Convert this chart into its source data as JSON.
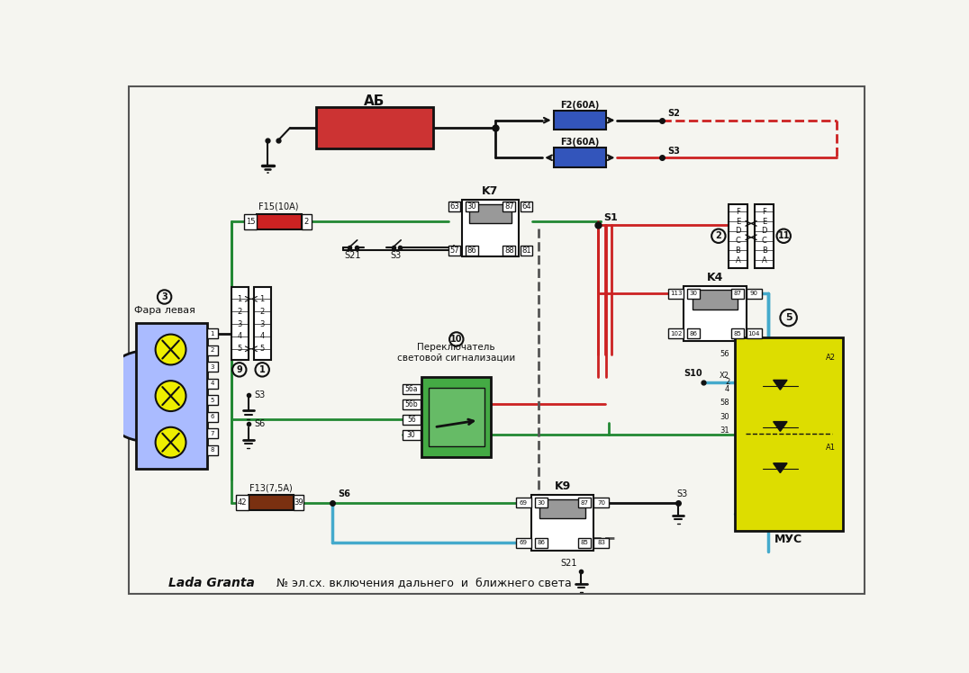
{
  "title": "Lada Granta",
  "subtitle": "№ эл.сх. включения дальнего  и  ближнего света",
  "bg": "#f5f5f0",
  "red": "#cc2222",
  "green": "#228833",
  "blue": "#44aacc",
  "black": "#111111",
  "gray": "#999999",
  "battery_color": "#cc3333",
  "fuse_blue": "#3355bb",
  "fuse_red": "#cc2222",
  "fuse_brown": "#7a3010",
  "yellow": "#dddd00",
  "light_green": "#44aa44",
  "light_blue": "#aabbff",
  "lamp_yellow": "#eeee00",
  "ab": "АБ",
  "f2": "F2(60A)",
  "f3": "F3(60A)",
  "f15": "F15(10A)",
  "f13": "F13(7,5A)",
  "s1": "S1",
  "s2": "S2",
  "s3": "S3",
  "s6": "S6",
  "s10": "S10",
  "s21": "S21",
  "k4": "K4",
  "k7": "K7",
  "k9": "K9",
  "c2": "2",
  "c11": "11",
  "c9": "9",
  "c1": "1",
  "c3": "3",
  "c5": "5",
  "c10": "10",
  "fara": "Фара левая",
  "switch_label": "Переключатель\nсветовой сигнализации",
  "mus": "МУС"
}
